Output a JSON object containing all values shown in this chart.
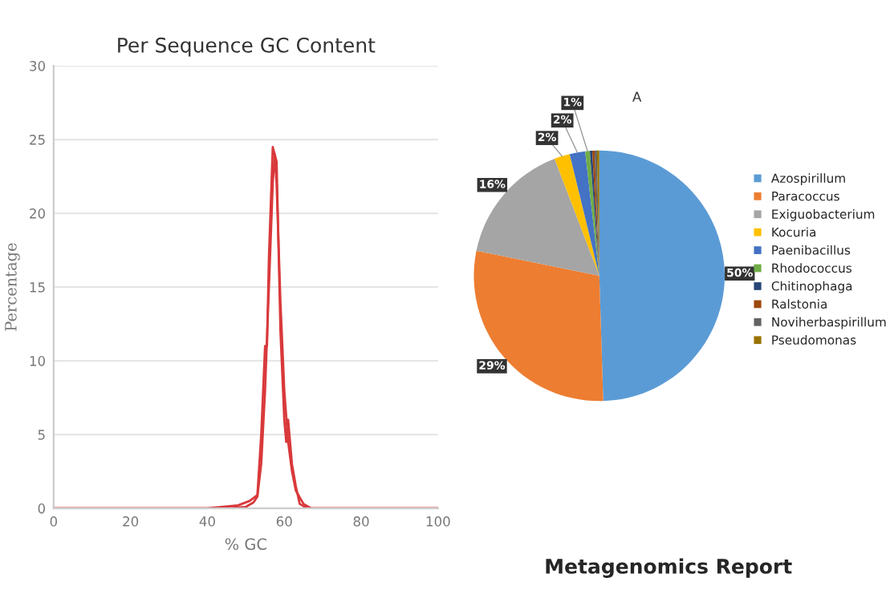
{
  "chart_data": [
    {
      "type": "line",
      "title": "Per Sequence GC Content",
      "xlabel": "% GC",
      "ylabel": "Percentage",
      "xlim": [
        0,
        100
      ],
      "xticks": [
        0,
        20,
        40,
        60,
        80,
        100
      ],
      "ylim": [
        0,
        30
      ],
      "yticks": [
        0,
        5,
        10,
        15,
        20,
        25,
        30
      ],
      "grid": "y",
      "legend": false,
      "series": [
        {
          "color": "#d9393b",
          "x": [
            0,
            40,
            48,
            51,
            53,
            54,
            55,
            55.5,
            56,
            57,
            58,
            59,
            60,
            60.5,
            61,
            62,
            63,
            64,
            66,
            100
          ],
          "values": [
            0,
            0,
            0.2,
            0.5,
            0.9,
            5,
            11,
            11,
            17,
            24.5,
            23.5,
            12,
            6,
            4.5,
            6,
            3,
            1.5,
            0.3,
            0,
            0
          ]
        },
        {
          "color": "#d9393b",
          "x": [
            0,
            45,
            50,
            52,
            53,
            54,
            55,
            56,
            57,
            57.5,
            58,
            59,
            60,
            61,
            62,
            63,
            65,
            67,
            100
          ],
          "values": [
            0,
            0,
            0.1,
            0.4,
            0.8,
            3,
            8,
            15,
            22,
            24,
            22,
            14,
            8,
            4.5,
            2.5,
            1.2,
            0.3,
            0,
            0
          ]
        }
      ]
    },
    {
      "type": "pie",
      "title": "Metagenomics Report",
      "annotations": [
        "A"
      ],
      "legend": "right",
      "categories": [
        "Azospirillum",
        "Paracoccus",
        "Exiguobacterium",
        "Kocuria",
        "Paenibacillus",
        "Rhodococcus",
        "Chitinophaga",
        "Ralstonia",
        "Noviherbaspirillum",
        "Pseudomonas"
      ],
      "values": [
        49.5,
        28.7,
        16,
        2,
        2,
        0.6,
        0.3,
        0.3,
        0.3,
        0.3
      ],
      "colors": [
        "#5b9bd5",
        "#ed7d31",
        "#a5a5a5",
        "#ffc000",
        "#4472c4",
        "#70ad47",
        "#264478",
        "#9e480e",
        "#636363",
        "#997300"
      ],
      "value_labels": [
        "50%",
        "29%",
        "16%",
        "2%",
        "2%",
        "1%",
        null,
        null,
        null,
        null
      ]
    }
  ]
}
